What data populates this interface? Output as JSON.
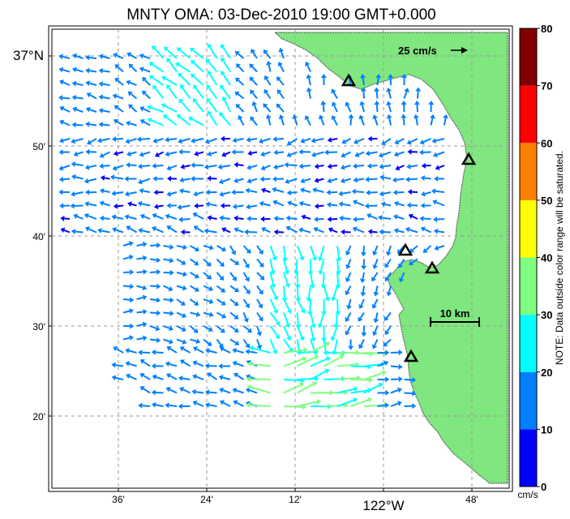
{
  "title": "MNTY OMA: 03-Dec-2010 19:00 GMT+0.000",
  "x_ticks": [
    {
      "label": "36'",
      "lon": -122.6
    },
    {
      "label": "24'",
      "lon": -122.4
    },
    {
      "label": "12'",
      "lon": -122.2
    },
    {
      "label": "122°W",
      "lon": -122.0
    },
    {
      "label": "48'",
      "lon": -121.8
    }
  ],
  "y_ticks": [
    {
      "label": "37°N",
      "lat": 37.0
    },
    {
      "label": "50'",
      "lat": 36.8333
    },
    {
      "label": "40'",
      "lat": 36.6667
    },
    {
      "label": "30'",
      "lat": 36.5
    },
    {
      "label": "20'",
      "lat": 36.3333
    }
  ],
  "reference_vector_label": "25 cm/s",
  "scale_bar_label": "10 km",
  "colorbar": {
    "ticks": [
      "0",
      "10",
      "20",
      "30",
      "40",
      "50",
      "60",
      "70",
      "80"
    ],
    "unit": "cm/s",
    "colors": [
      "#0000ff",
      "#0080ff",
      "#00ffff",
      "#80ff80",
      "#ffff00",
      "#ff8000",
      "#ff0000",
      "#800000"
    ]
  },
  "note": "NOTE: Data outside color range will be saturated.",
  "land_color": "#80e680"
}
